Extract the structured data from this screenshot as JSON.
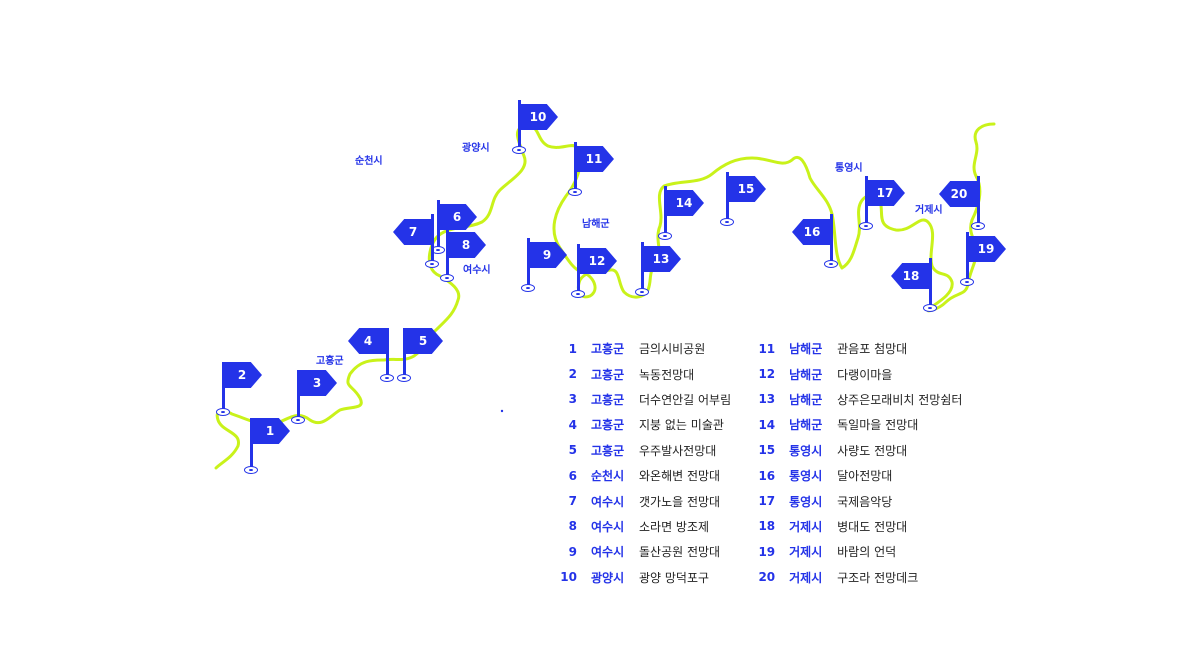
{
  "colors": {
    "accent": "#2433e8",
    "route": "#c9f21a",
    "text": "#222222"
  },
  "cities": [
    {
      "id": "suncheon",
      "label": "순천시"
    },
    {
      "id": "gwangyang",
      "label": "광양시"
    },
    {
      "id": "namhae",
      "label": "남해군"
    },
    {
      "id": "tongyeong",
      "label": "통영시"
    },
    {
      "id": "geoje",
      "label": "거제시"
    },
    {
      "id": "yeosu",
      "label": "여수시"
    },
    {
      "id": "goheung",
      "label": "고흥군"
    }
  ],
  "flags": [
    {
      "num": "1"
    },
    {
      "num": "2"
    },
    {
      "num": "3"
    },
    {
      "num": "4"
    },
    {
      "num": "5"
    },
    {
      "num": "6"
    },
    {
      "num": "7"
    },
    {
      "num": "8"
    },
    {
      "num": "9"
    },
    {
      "num": "10"
    },
    {
      "num": "11"
    },
    {
      "num": "12"
    },
    {
      "num": "13"
    },
    {
      "num": "14"
    },
    {
      "num": "15"
    },
    {
      "num": "16"
    },
    {
      "num": "17"
    },
    {
      "num": "18"
    },
    {
      "num": "19"
    },
    {
      "num": "20"
    }
  ],
  "legend": [
    {
      "num": "1",
      "region": "고흥군",
      "place": "금의시비공원"
    },
    {
      "num": "2",
      "region": "고흥군",
      "place": "녹동전망대"
    },
    {
      "num": "3",
      "region": "고흥군",
      "place": "더수연안길 어부림"
    },
    {
      "num": "4",
      "region": "고흥군",
      "place": "지붕 없는 미술관"
    },
    {
      "num": "5",
      "region": "고흥군",
      "place": "우주발사전망대"
    },
    {
      "num": "6",
      "region": "순천시",
      "place": "와온해변 전망대"
    },
    {
      "num": "7",
      "region": "여수시",
      "place": "갯가노을 전망대"
    },
    {
      "num": "8",
      "region": "여수시",
      "place": "소라면 방조제"
    },
    {
      "num": "9",
      "region": "여수시",
      "place": "돌산공원 전망대"
    },
    {
      "num": "10",
      "region": "광양시",
      "place": "광양 망덕포구"
    },
    {
      "num": "11",
      "region": "남해군",
      "place": "관음포 첨망대"
    },
    {
      "num": "12",
      "region": "남해군",
      "place": "다랭이마을"
    },
    {
      "num": "13",
      "region": "남해군",
      "place": "상주은모래비치 전망쉼터"
    },
    {
      "num": "14",
      "region": "남해군",
      "place": "독일마을 전망대"
    },
    {
      "num": "15",
      "region": "통영시",
      "place": "사량도 전망대"
    },
    {
      "num": "16",
      "region": "통영시",
      "place": "달아전망대"
    },
    {
      "num": "17",
      "region": "통영시",
      "place": "국제음악당"
    },
    {
      "num": "18",
      "region": "거제시",
      "place": "병대도 전망대"
    },
    {
      "num": "19",
      "region": "거제시",
      "place": "바람의 언덕"
    },
    {
      "num": "20",
      "region": "거제시",
      "place": "구조라 전망데크"
    }
  ]
}
